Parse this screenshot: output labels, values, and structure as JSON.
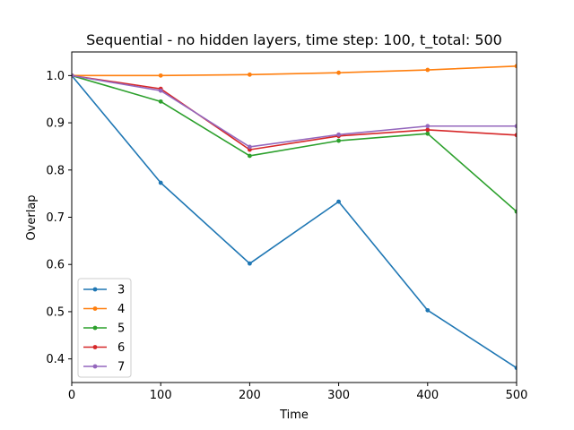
{
  "chart_data": {
    "type": "line",
    "title": "Sequential - no hidden layers, time step: 100, t_total: 500",
    "xlabel": "Time",
    "ylabel": "Overlap",
    "x": [
      0,
      100,
      200,
      300,
      400,
      500
    ],
    "xlim": [
      0,
      500
    ],
    "ylim": [
      0.35,
      1.05
    ],
    "xticks": [
      "0",
      "100",
      "200",
      "300",
      "400",
      "500"
    ],
    "yticks": [
      "0.4",
      "0.5",
      "0.6",
      "0.7",
      "0.8",
      "0.9",
      "1.0"
    ],
    "grid": false,
    "legend_position": "lower-left",
    "series": [
      {
        "name": "3",
        "color": "#1f77b4",
        "values": [
          1.0,
          0.773,
          0.602,
          0.733,
          0.503,
          0.381
        ]
      },
      {
        "name": "4",
        "color": "#ff7f0e",
        "values": [
          1.0,
          1.0,
          1.002,
          1.006,
          1.012,
          1.02
        ]
      },
      {
        "name": "5",
        "color": "#2ca02c",
        "values": [
          1.0,
          0.945,
          0.83,
          0.862,
          0.877,
          0.712
        ]
      },
      {
        "name": "6",
        "color": "#d62728",
        "values": [
          1.0,
          0.972,
          0.843,
          0.872,
          0.885,
          0.874
        ]
      },
      {
        "name": "7",
        "color": "#9467bd",
        "values": [
          1.0,
          0.968,
          0.849,
          0.875,
          0.893,
          0.893
        ]
      }
    ]
  }
}
